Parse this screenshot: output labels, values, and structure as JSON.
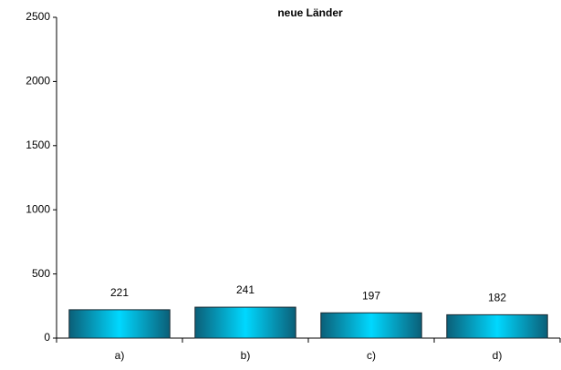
{
  "chart_data": {
    "type": "bar",
    "title": "neue Länder",
    "categories": [
      "a)",
      "b)",
      "c)",
      "d)"
    ],
    "values": [
      221,
      241,
      197,
      182
    ],
    "color": "#00d8ff",
    "ylim": [
      0,
      2500
    ],
    "yticks": [
      0,
      500,
      1000,
      1500,
      2000,
      2500
    ],
    "grid": false,
    "data_labels": true
  }
}
